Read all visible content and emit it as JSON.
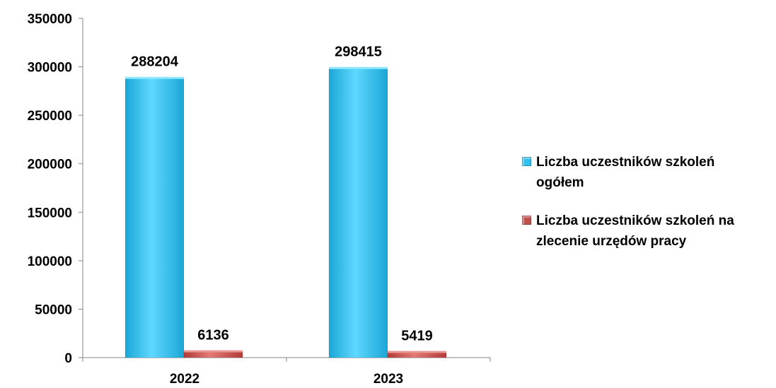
{
  "chart_data": {
    "type": "bar",
    "categories": [
      "2022",
      "2023"
    ],
    "series": [
      {
        "name": "Liczba uczestników szkoleń ogółem",
        "values": [
          288204,
          298415
        ],
        "color": "#2ec0ee"
      },
      {
        "name": " Liczba uczestników szkoleń na zlecenie urzędów pracy",
        "values": [
          6136,
          5419
        ],
        "color": "#c0504d"
      }
    ],
    "data_labels": [
      [
        "288204",
        "298415"
      ],
      [
        "6136",
        "5419"
      ]
    ],
    "yticks": [
      "0",
      "50000",
      "100000",
      "150000",
      "200000",
      "250000",
      "300000",
      "350000"
    ],
    "ylim": [
      0,
      350000
    ],
    "grid": false,
    "legend_position": "right",
    "title": "",
    "xlabel": "",
    "ylabel": ""
  }
}
